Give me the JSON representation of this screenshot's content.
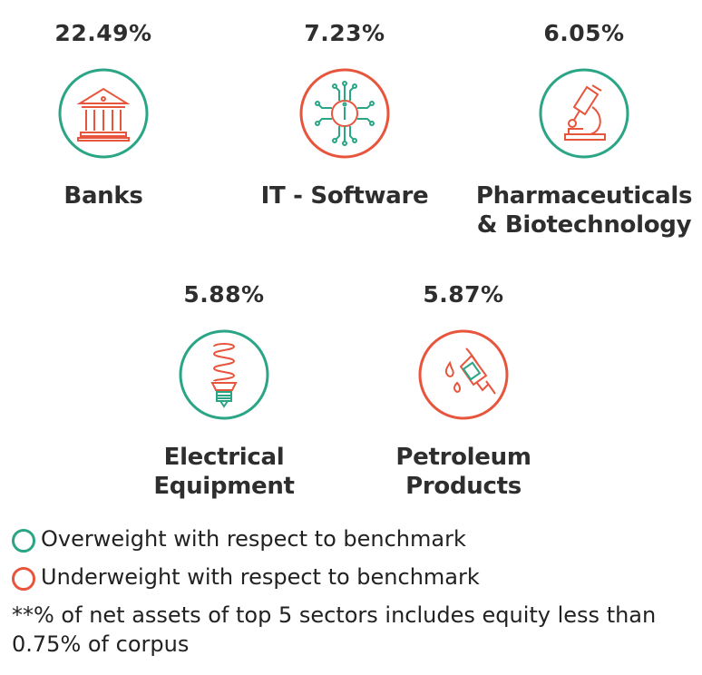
{
  "sectors": [
    {
      "pct": "22.49%",
      "name": "Banks",
      "icon": "bank-icon",
      "weight": "overweight"
    },
    {
      "pct": "7.23%",
      "name": "IT - Software",
      "icon": "circuit-chip-icon",
      "weight": "underweight"
    },
    {
      "pct": "6.05%",
      "name_line1": "Pharmaceuticals",
      "name_line2": "& Biotechnology",
      "icon": "microscope-icon",
      "weight": "overweight"
    },
    {
      "pct": "5.88%",
      "name_line1": "Electrical",
      "name_line2": "Equipment",
      "icon": "cfl-bulb-icon",
      "weight": "overweight"
    },
    {
      "pct": "5.87%",
      "name_line1": "Petroleum",
      "name_line2": "Products",
      "icon": "fuel-nozzle-icon",
      "weight": "underweight"
    }
  ],
  "colors": {
    "overweight": "#2aa585",
    "underweight": "#e8553d"
  },
  "legend": {
    "overweight": "Overweight with respect to benchmark",
    "underweight": "Underweight with respect to benchmark"
  },
  "note": "**% of net assets of top 5 sectors includes equity less than 0.75% of corpus"
}
